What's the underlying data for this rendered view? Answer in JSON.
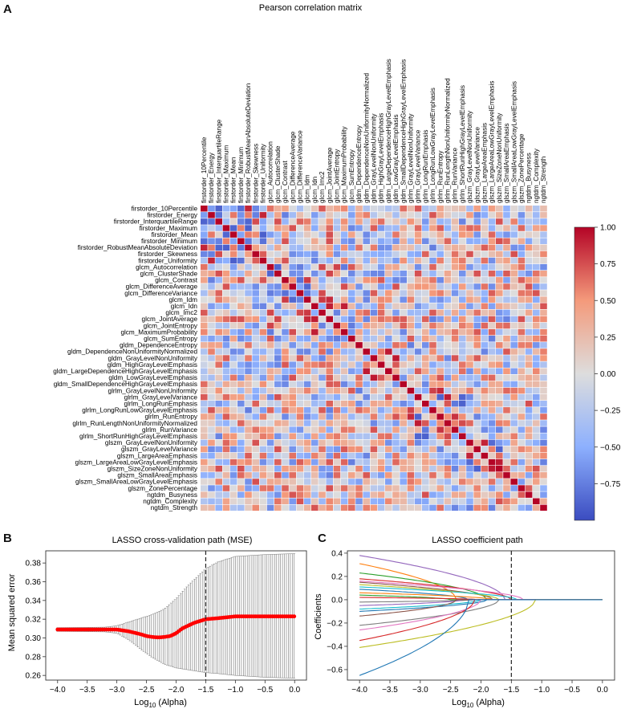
{
  "panel_labels": {
    "a": "A",
    "b": "B",
    "c": "C"
  },
  "colors": {
    "heat_low": "#3b4cc0",
    "heat_mid": "#dddddd",
    "heat_high": "#b40426",
    "mse_points": "#ff0000",
    "error_bars": "#777777",
    "alpha_line": "#222222",
    "frame": "#333333"
  },
  "chart_data": [
    {
      "type": "heatmap",
      "title": "Pearson correlation matrix",
      "features": [
        "firstorder_10Percentile",
        "firstorder_Energy",
        "firstorder_InterquartileRange",
        "firstorder_Maximum",
        "firstorder_Mean",
        "firstorder_Minimum",
        "firstorder_RobustMeanAbsoluteDeviation",
        "firstorder_Skewness",
        "firstorder_Uniformity",
        "glcm_Autocorrelation",
        "glcm_ClusterShade",
        "glcm_Contrast",
        "glcm_DifferenceAverage",
        "glcm_DifferenceVariance",
        "glcm_Idm",
        "glcm_Idn",
        "glcm_Imc2",
        "glcm_JointAverage",
        "glcm_JointEntropy",
        "glcm_MaximumProbability",
        "glcm_SumEntropy",
        "gldm_DependenceEntropy",
        "gldm_DependenceNonUniformityNormalized",
        "gldm_GrayLevelNonUniformity",
        "gldm_HighGrayLevelEmphasis",
        "gldm_LargeDependenceHighGrayLevelEmphasis",
        "gldm_LowGrayLevelEmphasis",
        "gldm_SmallDependenceHighGrayLevelEmphasis",
        "glrlm_GrayLevelNonUniformity",
        "glrlm_GrayLevelVariance",
        "glrlm_LongRunEmphasis",
        "glrlm_LongRunLowGrayLevelEmphasis",
        "glrlm_RunEntropy",
        "glrlm_RunLengthNonUniformityNormalized",
        "glrlm_RunVariance",
        "glrlm_ShortRunHighGrayLevelEmphasis",
        "glszm_GrayLevelNonUniformity",
        "glszm_GrayLevelVariance",
        "glszm_LargeAreaEmphasis",
        "glszm_LargeAreaLowGrayLevelEmphasis",
        "glszm_SizeZoneNonUniformity",
        "glszm_SmallAreaEmphasis",
        "glszm_SmallAreaLowGrayLevelEmphasis",
        "glszm_ZonePercentage",
        "ngtdm_Busyness",
        "ngtdm_Complexity",
        "ngtdm_Strength"
      ],
      "row_labels_shown": [
        "firstorder_10Percentile",
        "firstorder_Energy",
        "firstorder_InterquartileRange",
        "firstorder_Maximum",
        "firstorder_Mean",
        "firstorder_Minimum",
        "firstorder_RobustMeanAbsoluteDeviation",
        "firstorder_Skewness",
        "firstorder_Uniformity",
        "glcm_Autocorrelation",
        "glcm_ClusterShade",
        "glcm_Contrast",
        "glcm_DifferenceAverage",
        "glcm_DifferenceVariance",
        "glcm_Idm",
        "glcm_Idn",
        "glcm_Imc2",
        "glcm_JointAverage",
        "glcm_JointEntropy",
        "glcm_MaximumProbability",
        "glcm_SumEntropy",
        "gldm_DependenceEntropy",
        "gldm_DependenceNonUniformityNormalized",
        "gldm_GrayLevelNonUniformity",
        "gldm_HighGrayLevelEmphasis",
        "gldm_LargeDependenceHighGrayLevelEmphasis",
        "gldm_LowGrayLevelEmphasis",
        "gldm_SmallDependenceHighGrayLevelEmphasis",
        "glrlm_GrayLevelNonUniformity",
        "glrlm_GrayLevelVariance",
        "glrlm_LongRunEmphasis",
        "glrlm_LongRunLowGrayLevelEmphasis",
        "glrlm_RunEntropy",
        "glrlm_RunLengthNonUniformityNormalized",
        "glrlm_RunVariance",
        "glrlm_ShortRunHighGrayLevelEmphasis",
        "glszm_GrayLevelNonUniformity",
        "glszm_GrayLevelVariance",
        "glszm_LargeAreaEmphasis",
        "glszm_LargeAreaLowGrayLevelEmphasis",
        "glszm_SizeZoneNonUniformity",
        "glszm_SmallAreaEmphasis",
        "glszm_SmallAreaLowGrayLevelEmphasis",
        "glszm_ZonePercentage",
        "ngtdm_Busyness",
        "ngtdm_Complexity",
        "ngtdm_Strength"
      ],
      "colorbar": {
        "range": [
          -1.0,
          1.0
        ],
        "ticks": [
          "1.00",
          "0.75",
          "0.50",
          "0.25",
          "0.00",
          "−0.25",
          "−0.50",
          "−0.75"
        ],
        "tick_values": [
          1.0,
          0.75,
          0.5,
          0.25,
          0.0,
          -0.25,
          -0.5,
          -0.75
        ]
      }
    },
    {
      "type": "line",
      "title": "LASSO cross-validation path (MSE)",
      "xlabel": "Log",
      "xlabel_sub": "10",
      "xlabel_suffix": " (Alpha)",
      "ylabel": "Mean squared error",
      "xlim": [
        -4.2,
        0.2
      ],
      "ylim": [
        0.255,
        0.393
      ],
      "xticks": [
        -4.0,
        -3.5,
        -3.0,
        -2.5,
        -2.0,
        -1.5,
        -1.0,
        -0.5,
        0.0
      ],
      "xtick_labels": [
        "−4.0",
        "−3.5",
        "−3.0",
        "−2.5",
        "−2.0",
        "−1.5",
        "−1.0",
        "−0.5",
        "0.0"
      ],
      "yticks": [
        0.26,
        0.28,
        0.3,
        0.32,
        0.34,
        0.36,
        0.38
      ],
      "ytick_labels": [
        "0.26",
        "0.28",
        "0.30",
        "0.32",
        "0.34",
        "0.36",
        "0.38"
      ],
      "selected_log_alpha": -1.5,
      "mse_curve": {
        "x": [
          -4.0,
          -3.0,
          -2.8,
          -2.6,
          -2.5,
          -2.4,
          -2.3,
          -2.2,
          -2.1,
          -2.0,
          -1.9,
          -1.8,
          -1.7,
          -1.6,
          -1.5,
          -1.3,
          -1.0,
          -0.5,
          0.0
        ],
        "y": [
          0.309,
          0.309,
          0.307,
          0.304,
          0.302,
          0.301,
          0.3005,
          0.301,
          0.302,
          0.305,
          0.31,
          0.313,
          0.316,
          0.318,
          0.32,
          0.321,
          0.323,
          0.323,
          0.323
        ]
      },
      "err_upper": {
        "x": [
          -4.0,
          -3.2,
          -3.0,
          -2.8,
          -2.6,
          -2.4,
          -2.2,
          -2.0,
          -1.8,
          -1.6,
          -1.5,
          -1.3,
          -1.0,
          -0.5,
          0.0
        ],
        "y": [
          0.311,
          0.3115,
          0.313,
          0.317,
          0.321,
          0.325,
          0.331,
          0.342,
          0.356,
          0.368,
          0.374,
          0.381,
          0.387,
          0.389,
          0.39
        ]
      },
      "err_lower": {
        "x": [
          -4.0,
          -3.2,
          -3.0,
          -2.8,
          -2.6,
          -2.4,
          -2.2,
          -2.0,
          -1.8,
          -1.6,
          -1.5,
          -1.3,
          -1.0,
          -0.5,
          0.0
        ],
        "y": [
          0.307,
          0.3065,
          0.305,
          0.298,
          0.288,
          0.279,
          0.272,
          0.268,
          0.266,
          0.264,
          0.263,
          0.262,
          0.26,
          0.258,
          0.257
        ]
      }
    },
    {
      "type": "line",
      "title": "LASSO coefficient path",
      "xlabel": "Log",
      "xlabel_sub": "10",
      "xlabel_suffix": " (Alpha)",
      "ylabel": "Coefficients",
      "xlim": [
        -4.2,
        0.2
      ],
      "ylim": [
        -0.69,
        0.42
      ],
      "xticks": [
        -4.0,
        -3.5,
        -3.0,
        -2.5,
        -2.0,
        -1.5,
        -1.0,
        -0.5,
        0.0
      ],
      "xtick_labels": [
        "−4.0",
        "−3.5",
        "−3.0",
        "−2.5",
        "−2.0",
        "−1.5",
        "−1.0",
        "−0.5",
        "0.0"
      ],
      "yticks": [
        0.4,
        0.2,
        0.0,
        -0.2,
        -0.4,
        -0.6
      ],
      "ytick_labels": [
        "0.4",
        "0.2",
        "0.0",
        "−0.2",
        "−0.4",
        "−0.6"
      ],
      "selected_log_alpha": -1.5,
      "series": [
        {
          "color": "#9467bd",
          "start": 0.38,
          "decay": -1.6
        },
        {
          "color": "#ff7f0e",
          "start": 0.31,
          "decay": -2.4
        },
        {
          "color": "#2ca02c",
          "start": 0.23,
          "decay": -1.9
        },
        {
          "color": "#d62728",
          "start": 0.18,
          "decay": -1.5
        },
        {
          "color": "#e377c2",
          "start": 0.16,
          "decay": -1.3
        },
        {
          "color": "#8c564b",
          "start": 0.15,
          "decay": -1.8
        },
        {
          "color": "#bcbd22",
          "start": 0.13,
          "decay": -1.7
        },
        {
          "color": "#17becf",
          "start": 0.11,
          "decay": -1.4
        },
        {
          "color": "#1f77b4",
          "start": 0.09,
          "decay": -2.2
        },
        {
          "color": "#ff7f0e",
          "start": 0.06,
          "decay": -1.8
        },
        {
          "color": "#2ca02c",
          "start": 0.04,
          "decay": -2.5
        },
        {
          "color": "#d62728",
          "start": 0.02,
          "decay": -2.0
        },
        {
          "color": "#7f7f7f",
          "start": -0.02,
          "decay": -2.1
        },
        {
          "color": "#9467bd",
          "start": -0.05,
          "decay": -2.3
        },
        {
          "color": "#17becf",
          "start": -0.08,
          "decay": -2.0
        },
        {
          "color": "#1f77b4",
          "start": -0.1,
          "decay": -1.9
        },
        {
          "color": "#8c564b",
          "start": -0.14,
          "decay": -2.4
        },
        {
          "color": "#7f7f7f",
          "start": -0.22,
          "decay": -1.7
        },
        {
          "color": "#e377c2",
          "start": -0.26,
          "decay": -2.0
        },
        {
          "color": "#d62728",
          "start": -0.35,
          "decay": -2.1
        },
        {
          "color": "#bcbd22",
          "start": -0.41,
          "decay": -1.1
        },
        {
          "color": "#1f77b4",
          "start": -0.65,
          "decay": -2.2
        }
      ]
    }
  ]
}
